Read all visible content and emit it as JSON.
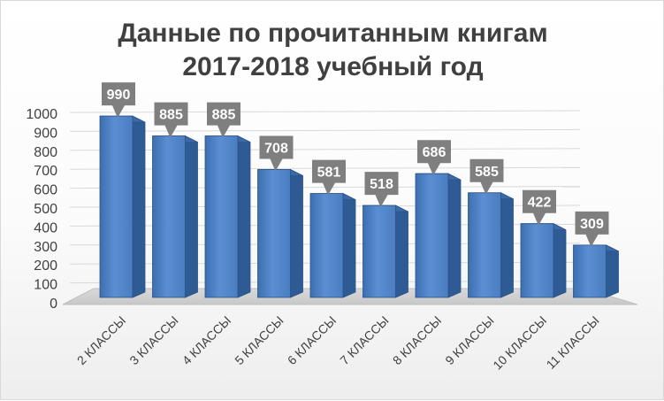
{
  "chart_data": {
    "type": "bar",
    "title_line1": "Данные по прочитанным книгам",
    "title_line2": "2017-2018 учебный год",
    "categories": [
      "2 КЛАССЫ",
      "3 КЛАССЫ",
      "4 КЛАССЫ",
      "5 КЛАССЫ",
      "6 КЛАССЫ",
      "7 КЛАССЫ",
      "8 КЛАССЫ",
      "9 КЛАССЫ",
      "10 КЛАССЫ",
      "11 КЛАССЫ"
    ],
    "values": [
      990,
      885,
      885,
      708,
      581,
      518,
      686,
      585,
      422,
      309
    ],
    "ylim": [
      0,
      1000
    ],
    "yticks": [
      "0",
      "100",
      "200",
      "300",
      "400",
      "500",
      "600",
      "700",
      "800",
      "900",
      "1000"
    ],
    "data_labels": [
      "990",
      "885",
      "885",
      "708",
      "581",
      "518",
      "686",
      "585",
      "422",
      "309"
    ],
    "bar_color": "#4f81bd",
    "callout_color": "#7f7f7f",
    "grid": true,
    "style": "3d-clustered-bar"
  }
}
